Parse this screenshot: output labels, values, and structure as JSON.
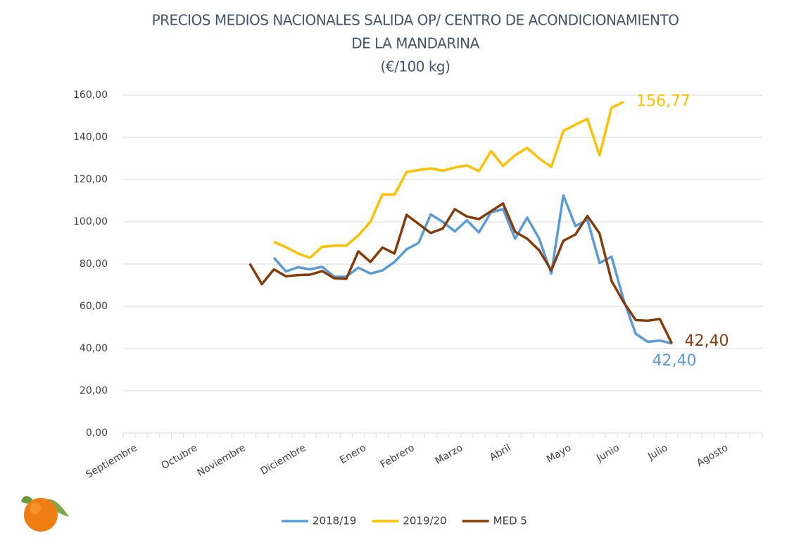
{
  "chart_data": {
    "type": "line",
    "title": [
      "PRECIOS MEDIOS NACIONALES SALIDA OP/ CENTRO DE ACONDICIONAMIENTO",
      "DE LA MANDARINA",
      "(€/100 kg)"
    ],
    "categories": [
      "Septiembre",
      null,
      null,
      null,
      null,
      "Octubre",
      null,
      null,
      null,
      "Noviembre",
      null,
      null,
      null,
      null,
      "Diciembre",
      null,
      null,
      null,
      null,
      "Enero",
      null,
      null,
      null,
      "Febrero",
      null,
      null,
      null,
      "Marzo",
      null,
      null,
      null,
      "Abril",
      null,
      null,
      null,
      null,
      "Mayo",
      null,
      null,
      null,
      "Junio",
      null,
      null,
      null,
      "Julio",
      null,
      null,
      null,
      null,
      "Agosto",
      null,
      null,
      null
    ],
    "series": [
      {
        "name": "2018/19",
        "color": "#5b9bd5",
        "values": [
          null,
          null,
          null,
          null,
          null,
          null,
          null,
          null,
          null,
          null,
          null,
          null,
          83,
          76.5,
          78.5,
          77.5,
          78.7,
          74,
          74,
          78.3,
          75.5,
          77,
          81,
          87,
          90,
          103.5,
          100,
          95.5,
          100.7,
          95,
          104.5,
          106,
          92,
          102,
          92,
          75.5,
          112.5,
          98,
          101,
          80.5,
          83.5,
          63,
          47,
          43.2,
          43.8,
          42.4,
          null,
          null,
          null,
          null,
          null,
          null,
          null
        ],
        "value_labels": [
          null,
          null,
          null,
          null,
          null,
          null,
          null,
          null,
          null,
          null,
          null,
          null,
          null,
          null,
          null,
          null,
          null,
          null,
          null,
          null,
          null,
          null,
          null,
          null,
          null,
          null,
          null,
          null,
          null,
          null,
          null,
          null,
          null,
          null,
          null,
          null,
          null,
          null,
          null,
          null,
          null,
          null,
          null,
          null,
          null,
          "42,40",
          null,
          null,
          null,
          null,
          null,
          null,
          null
        ]
      },
      {
        "name": "2019/20",
        "color": "#ffc000",
        "values": [
          null,
          null,
          null,
          null,
          null,
          null,
          null,
          null,
          null,
          null,
          null,
          null,
          90.5,
          88,
          85,
          83,
          88.2,
          88.7,
          88.7,
          93.5,
          100,
          113,
          112.8,
          123.5,
          124.5,
          125.3,
          124.2,
          125.7,
          126.7,
          124,
          133.5,
          126.5,
          131.5,
          135,
          130,
          126,
          143,
          146,
          148.7,
          131.5,
          154,
          156.77,
          null,
          null,
          null,
          null,
          null,
          null,
          null,
          null,
          null,
          null,
          null
        ],
        "value_labels": [
          null,
          null,
          null,
          null,
          null,
          null,
          null,
          null,
          null,
          null,
          null,
          null,
          null,
          null,
          null,
          null,
          null,
          null,
          null,
          null,
          null,
          null,
          null,
          null,
          null,
          null,
          null,
          null,
          null,
          null,
          null,
          null,
          null,
          null,
          null,
          null,
          null,
          null,
          null,
          null,
          null,
          "156,77",
          null,
          null,
          null,
          null,
          null,
          null,
          null,
          null,
          null,
          null,
          null
        ]
      },
      {
        "name": "MED 5",
        "color": "#843c0c",
        "values": [
          null,
          null,
          null,
          null,
          null,
          null,
          null,
          null,
          null,
          null,
          80.2,
          70.5,
          77.5,
          74.2,
          74.8,
          75,
          76.7,
          73.3,
          73,
          86,
          81,
          87.8,
          85,
          103.3,
          99,
          94.7,
          96.8,
          106,
          102.5,
          101.3,
          105,
          108.7,
          95.3,
          92,
          86.5,
          77,
          91,
          94,
          102.8,
          94.5,
          72,
          62,
          53.5,
          53.2,
          54,
          42.4,
          null,
          null,
          null,
          null,
          null,
          null,
          null
        ],
        "value_labels": [
          null,
          null,
          null,
          null,
          null,
          null,
          null,
          null,
          null,
          null,
          null,
          null,
          null,
          null,
          null,
          null,
          null,
          null,
          null,
          null,
          null,
          null,
          null,
          null,
          null,
          null,
          null,
          null,
          null,
          null,
          null,
          null,
          null,
          null,
          null,
          null,
          null,
          null,
          null,
          null,
          null,
          null,
          null,
          null,
          null,
          "42,40",
          null,
          null,
          null,
          null,
          null,
          null,
          null
        ]
      }
    ],
    "ylim": [
      0,
      160
    ],
    "yticks": [
      {
        "value": 0,
        "label": "0,00"
      },
      {
        "value": 20,
        "label": "20,00"
      },
      {
        "value": 40,
        "label": "40,00"
      },
      {
        "value": 60,
        "label": "60,00"
      },
      {
        "value": 80,
        "label": "80,00"
      },
      {
        "value": 100,
        "label": "100,00"
      },
      {
        "value": 120,
        "label": "120,00"
      },
      {
        "value": 140,
        "label": "140,00"
      },
      {
        "value": 160,
        "label": "160,00"
      }
    ],
    "grid": true,
    "legend": "bottom"
  }
}
